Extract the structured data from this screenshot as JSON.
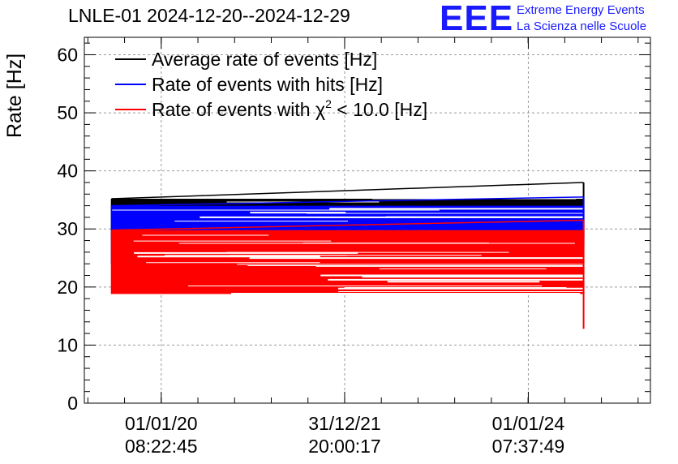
{
  "header": {
    "title": "LNLE-01 2024-12-20--2024-12-29",
    "logo_text": "EEE",
    "logo_line1": "Extreme Energy Events",
    "logo_line2": "La Scienza nelle Scuole"
  },
  "chart_data": {
    "type": "line",
    "title": "LNLE-01 2024-12-20--2024-12-29",
    "ylabel": "Rate [Hz]",
    "xlabel": "",
    "ylim": [
      0,
      63
    ],
    "yticks": [
      0,
      10,
      20,
      30,
      40,
      50,
      60
    ],
    "grid": true,
    "legend_position": "top-left",
    "xticks": [
      {
        "date": "01/01/20",
        "time": "08:22:45"
      },
      {
        "date": "31/12/21",
        "time": "20:00:17"
      },
      {
        "date": "01/01/24",
        "time": "07:37:49"
      }
    ],
    "series": [
      {
        "name": "Average rate of events [Hz]",
        "color": "#000000",
        "x_start": "2019-06-17",
        "x_end": "2024-08-08",
        "range_min": 28.0,
        "range_max": 35.2,
        "end_value": 38.0,
        "end_dip": 28.5
      },
      {
        "name": "Rate of events with hits [Hz]",
        "color": "#0000ff",
        "x_start": "2019-06-17",
        "x_end": "2024-08-08",
        "range_min": 24.0,
        "range_max": 34.0,
        "end_value": 35.5,
        "end_dip": 27.0
      },
      {
        "name": "Rate of events with χ² < 10.0 [Hz]",
        "color": "#ff0000",
        "x_start": "2019-06-17",
        "x_end": "2024-08-08",
        "range_min": 18.8,
        "range_max": 29.8,
        "end_value": 31.5,
        "end_dip": 12.8
      }
    ],
    "legend_labels": {
      "avg": "Average rate of events [Hz]",
      "hits": "Rate of events with hits [Hz]",
      "chi_prefix": "Rate of events with χ",
      "chi_sup": "2",
      "chi_suffix": " < 10.0 [Hz]"
    }
  }
}
